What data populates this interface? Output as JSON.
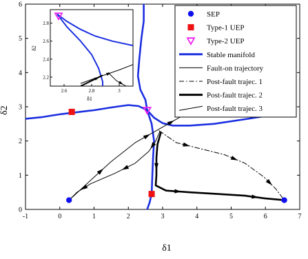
{
  "chart_data": {
    "type": "line",
    "xlabel": "δ1",
    "ylabel": "δ2",
    "xlim": [
      -1,
      7
    ],
    "ylim": [
      0,
      6
    ],
    "xticks": [
      -1,
      0,
      1,
      2,
      3,
      4,
      5,
      6,
      7
    ],
    "yticks": [
      0,
      1,
      2,
      3,
      4,
      5,
      6
    ],
    "grid": false,
    "legend": {
      "placement": "top-right",
      "entries": [
        {
          "label": "SEP",
          "marker": "circle",
          "color": "#1010ee"
        },
        {
          "label": "Type-1 UEP",
          "marker": "square",
          "color": "#ee1111"
        },
        {
          "label": "Type-2 UEP",
          "marker": "triangle-down",
          "color": "#ee22ee"
        },
        {
          "label": "Stable manifold",
          "line": "solid-thick",
          "color": "#1a2ee0"
        },
        {
          "label": "Fault-on trajectory",
          "line": "solid-thin",
          "color": "#000000"
        },
        {
          "label": "Post-fault trajec. 1",
          "line": "dashdot",
          "color": "#000000"
        },
        {
          "label": "Post-fault trajec. 2",
          "line": "solid-bold",
          "color": "#000000"
        },
        {
          "label": "Post-fault trajec. 3",
          "line": "solid-thin",
          "color": "#000000"
        }
      ]
    },
    "points": {
      "sep": [
        [
          0.27,
          0.27
        ],
        [
          6.55,
          0.27
        ]
      ],
      "type1_uep": [
        [
          0.35,
          2.85
        ],
        [
          2.68,
          0.45
        ],
        [
          6.75,
          2.85
        ]
      ],
      "type2_uep": [
        [
          2.55,
          2.9
        ]
      ]
    },
    "series": [
      {
        "name": "Stable manifold",
        "segments": [
          [
            [
              -1,
              2.65
            ],
            [
              -0.5,
              2.7
            ],
            [
              0,
              2.78
            ],
            [
              0.5,
              2.84
            ],
            [
              1.0,
              2.9
            ],
            [
              1.5,
              2.98
            ],
            [
              2.0,
              3.05
            ],
            [
              2.3,
              3.02
            ],
            [
              2.55,
              2.9
            ]
          ],
          [
            [
              2.55,
              2.9
            ],
            [
              2.75,
              2.68
            ],
            [
              3.0,
              2.52
            ],
            [
              3.3,
              2.45
            ],
            [
              3.8,
              2.45
            ],
            [
              4.5,
              2.5
            ],
            [
              5.5,
              2.65
            ],
            [
              6.3,
              2.78
            ],
            [
              6.75,
              2.85
            ]
          ],
          [
            [
              2.55,
              2.9
            ],
            [
              2.5,
              3.2
            ],
            [
              2.35,
              3.5
            ],
            [
              2.28,
              3.9
            ],
            [
              2.32,
              4.4
            ],
            [
              2.38,
              5.0
            ],
            [
              2.45,
              5.5
            ],
            [
              2.45,
              6.0
            ]
          ],
          [
            [
              2.55,
              2.9
            ],
            [
              2.68,
              2.5
            ],
            [
              2.75,
              2.0
            ],
            [
              2.72,
              1.5
            ],
            [
              2.7,
              1.0
            ],
            [
              2.68,
              0.45
            ],
            [
              2.62,
              0.2
            ],
            [
              2.55,
              0.0
            ]
          ]
        ]
      },
      {
        "name": "Fault-on trajectory",
        "segments": [
          [
            [
              0.27,
              0.27
            ],
            [
              0.9,
              0.85
            ],
            [
              1.5,
              1.4
            ],
            [
              2.2,
              1.95
            ],
            [
              2.9,
              2.35
            ],
            [
              3.6,
              2.75
            ],
            [
              4.2,
              3.05
            ]
          ]
        ]
      },
      {
        "name": "Post-fault trajec. 1",
        "segments": [
          [
            [
              2.9,
              2.3
            ],
            [
              3.4,
              1.95
            ],
            [
              4.0,
              1.8
            ],
            [
              4.8,
              1.6
            ],
            [
              5.4,
              1.35
            ],
            [
              5.95,
              0.95
            ],
            [
              6.3,
              0.6
            ],
            [
              6.55,
              0.27
            ]
          ]
        ]
      },
      {
        "name": "Post-fault trajec. 2",
        "segments": [
          [
            [
              2.95,
              2.25
            ],
            [
              2.85,
              1.9
            ],
            [
              2.82,
              1.5
            ],
            [
              2.82,
              1.0
            ],
            [
              2.8,
              0.7
            ],
            [
              3.1,
              0.55
            ],
            [
              3.8,
              0.5
            ],
            [
              4.6,
              0.45
            ],
            [
              5.4,
              0.4
            ],
            [
              6.0,
              0.32
            ],
            [
              6.55,
              0.27
            ]
          ]
        ]
      },
      {
        "name": "Post-fault trajec. 3",
        "segments": [
          [
            [
              2.92,
              2.28
            ],
            [
              2.8,
              2.0
            ],
            [
              2.6,
              1.7
            ],
            [
              2.2,
              1.35
            ],
            [
              1.6,
              1.05
            ],
            [
              0.9,
              0.75
            ],
            [
              0.5,
              0.5
            ],
            [
              0.27,
              0.27
            ]
          ]
        ]
      }
    ],
    "inset": {
      "xlabel": "δ1",
      "ylabel": "δ2",
      "xlim": [
        2.5,
        3.1
      ],
      "ylim": [
        2.1,
        2.95
      ],
      "xticks": [
        2.6,
        2.8,
        3
      ],
      "yticks": [
        2.2,
        2.4,
        2.6,
        2.8
      ],
      "series": [
        {
          "name": "Stable manifold",
          "points": [
            [
              2.55,
              2.9
            ],
            [
              2.62,
              2.82
            ],
            [
              2.72,
              2.73
            ],
            [
              2.82,
              2.66
            ],
            [
              2.95,
              2.6
            ],
            [
              3.1,
              2.55
            ]
          ]
        },
        {
          "name": "Stable manifold",
          "points": [
            [
              2.55,
              2.9
            ],
            [
              2.62,
              2.76
            ],
            [
              2.72,
              2.6
            ],
            [
              2.8,
              2.45
            ],
            [
              2.85,
              2.3
            ],
            [
              2.88,
              2.15
            ],
            [
              2.88,
              2.1
            ]
          ]
        },
        {
          "name": "Fault-on trajectory",
          "points": [
            [
              2.72,
              2.13
            ],
            [
              2.85,
              2.2
            ],
            [
              3.0,
              2.28
            ],
            [
              3.1,
              2.34
            ]
          ]
        },
        {
          "name": "Post-fault trajec. 2",
          "points": [
            [
              2.72,
              2.1
            ],
            [
              2.8,
              2.16
            ],
            [
              2.88,
              2.22
            ]
          ]
        },
        {
          "name": "Post-fault trajec. 3",
          "points": [
            [
              2.92,
              2.25
            ],
            [
              2.98,
              2.16
            ],
            [
              3.05,
              2.1
            ]
          ]
        }
      ],
      "type2_uep": [
        2.56,
        2.88
      ]
    }
  }
}
